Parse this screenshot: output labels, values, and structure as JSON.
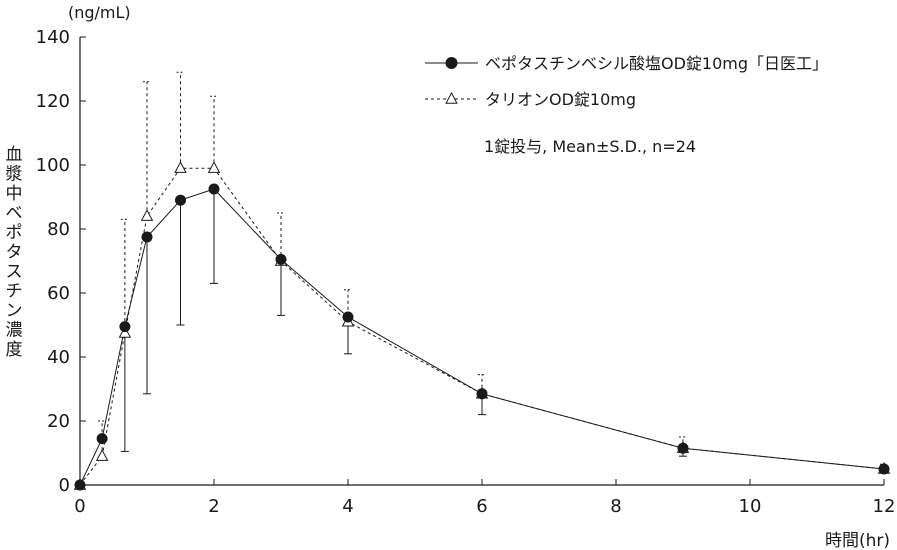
{
  "chart_data": {
    "type": "line",
    "y_unit_label": "(ng/mL)",
    "xlabel": "時間(hr)",
    "ylabel": "血漿中ベポタスチン濃度",
    "xlim": [
      0,
      12
    ],
    "ylim": [
      0,
      140
    ],
    "x_ticks": [
      0,
      2,
      4,
      6,
      8,
      10,
      12
    ],
    "y_ticks": [
      0,
      20,
      40,
      60,
      80,
      100,
      120,
      140
    ],
    "grid": false,
    "legend_position": "top-right",
    "note": "1錠投与, Mean±S.D., n=24",
    "series": [
      {
        "name": "ベポタスチンベシル酸塩OD錠10mg「日医工」",
        "marker": "filled-circle",
        "line_style": "solid",
        "color": "#1a1a1a",
        "x": [
          0,
          0.33,
          0.67,
          1,
          1.5,
          2,
          3,
          4,
          6,
          9,
          12
        ],
        "y": [
          0,
          14.5,
          49.5,
          77.5,
          89,
          92.5,
          70.5,
          52.5,
          28.5,
          11.5,
          5
        ],
        "sd": [
          0,
          0,
          39,
          49,
          39,
          29.5,
          17.5,
          11.5,
          6.5,
          2.5,
          1
        ]
      },
      {
        "name": "タリオンOD錠10mg",
        "marker": "open-triangle",
        "line_style": "dashed",
        "color": "#1a1a1a",
        "x": [
          0,
          0.33,
          0.67,
          1,
          1.5,
          2,
          3,
          4,
          6,
          9,
          12
        ],
        "y": [
          0,
          9,
          47.5,
          84,
          99,
          99,
          70,
          51,
          28.5,
          11.5,
          5
        ],
        "sd": [
          0,
          11,
          35.5,
          42,
          30,
          22.5,
          15,
          10,
          6,
          3.5,
          1.5
        ]
      }
    ]
  }
}
